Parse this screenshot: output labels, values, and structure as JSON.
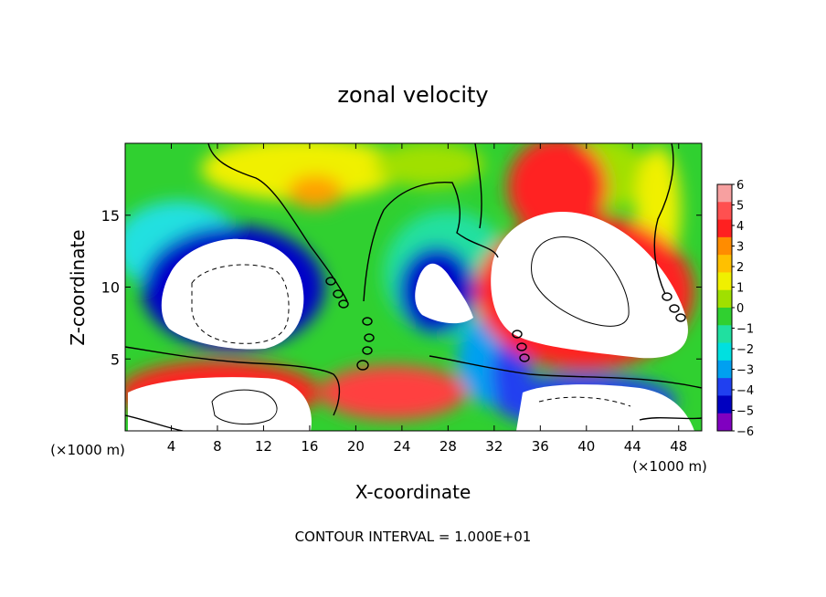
{
  "chart_data": {
    "type": "heatmap",
    "title": "zonal velocity",
    "xlabel": "X-coordinate",
    "ylabel": "Z-coordinate",
    "x_unit_note": "(×1000 m)",
    "footer": "CONTOUR INTERVAL = 1.000E+01",
    "xlim": [
      0,
      50
    ],
    "ylim": [
      0,
      20
    ],
    "x_ticks": [
      4,
      8,
      12,
      16,
      20,
      24,
      28,
      32,
      36,
      40,
      44,
      48
    ],
    "y_ticks": [
      5,
      10,
      15
    ],
    "colorbar": {
      "min": -6,
      "max": 6,
      "ticks": [
        6,
        5,
        4,
        3,
        2,
        1,
        0,
        -1,
        -2,
        -3,
        -4,
        -5,
        -6
      ],
      "colors": [
        "#f7a0a0",
        "#ff5050",
        "#ff2020",
        "#ff8c00",
        "#ffc000",
        "#f0f000",
        "#a0e000",
        "#30d030",
        "#20e0a0",
        "#00e0e0",
        "#00a0f0",
        "#2040f0",
        "#0000c0",
        "#8000c0"
      ]
    },
    "features": [
      {
        "kind": "negative core",
        "x": 10,
        "z": 10,
        "value_min": -6
      },
      {
        "kind": "negative core",
        "x": 28,
        "z": 9,
        "value_min": -6
      },
      {
        "kind": "positive core",
        "x": 40,
        "z": 10,
        "value_max": 6
      },
      {
        "kind": "positive core",
        "x": 10,
        "z": 2,
        "value_max": 6
      },
      {
        "kind": "negative core",
        "x": 38,
        "z": 2,
        "value_min": -6
      }
    ]
  }
}
